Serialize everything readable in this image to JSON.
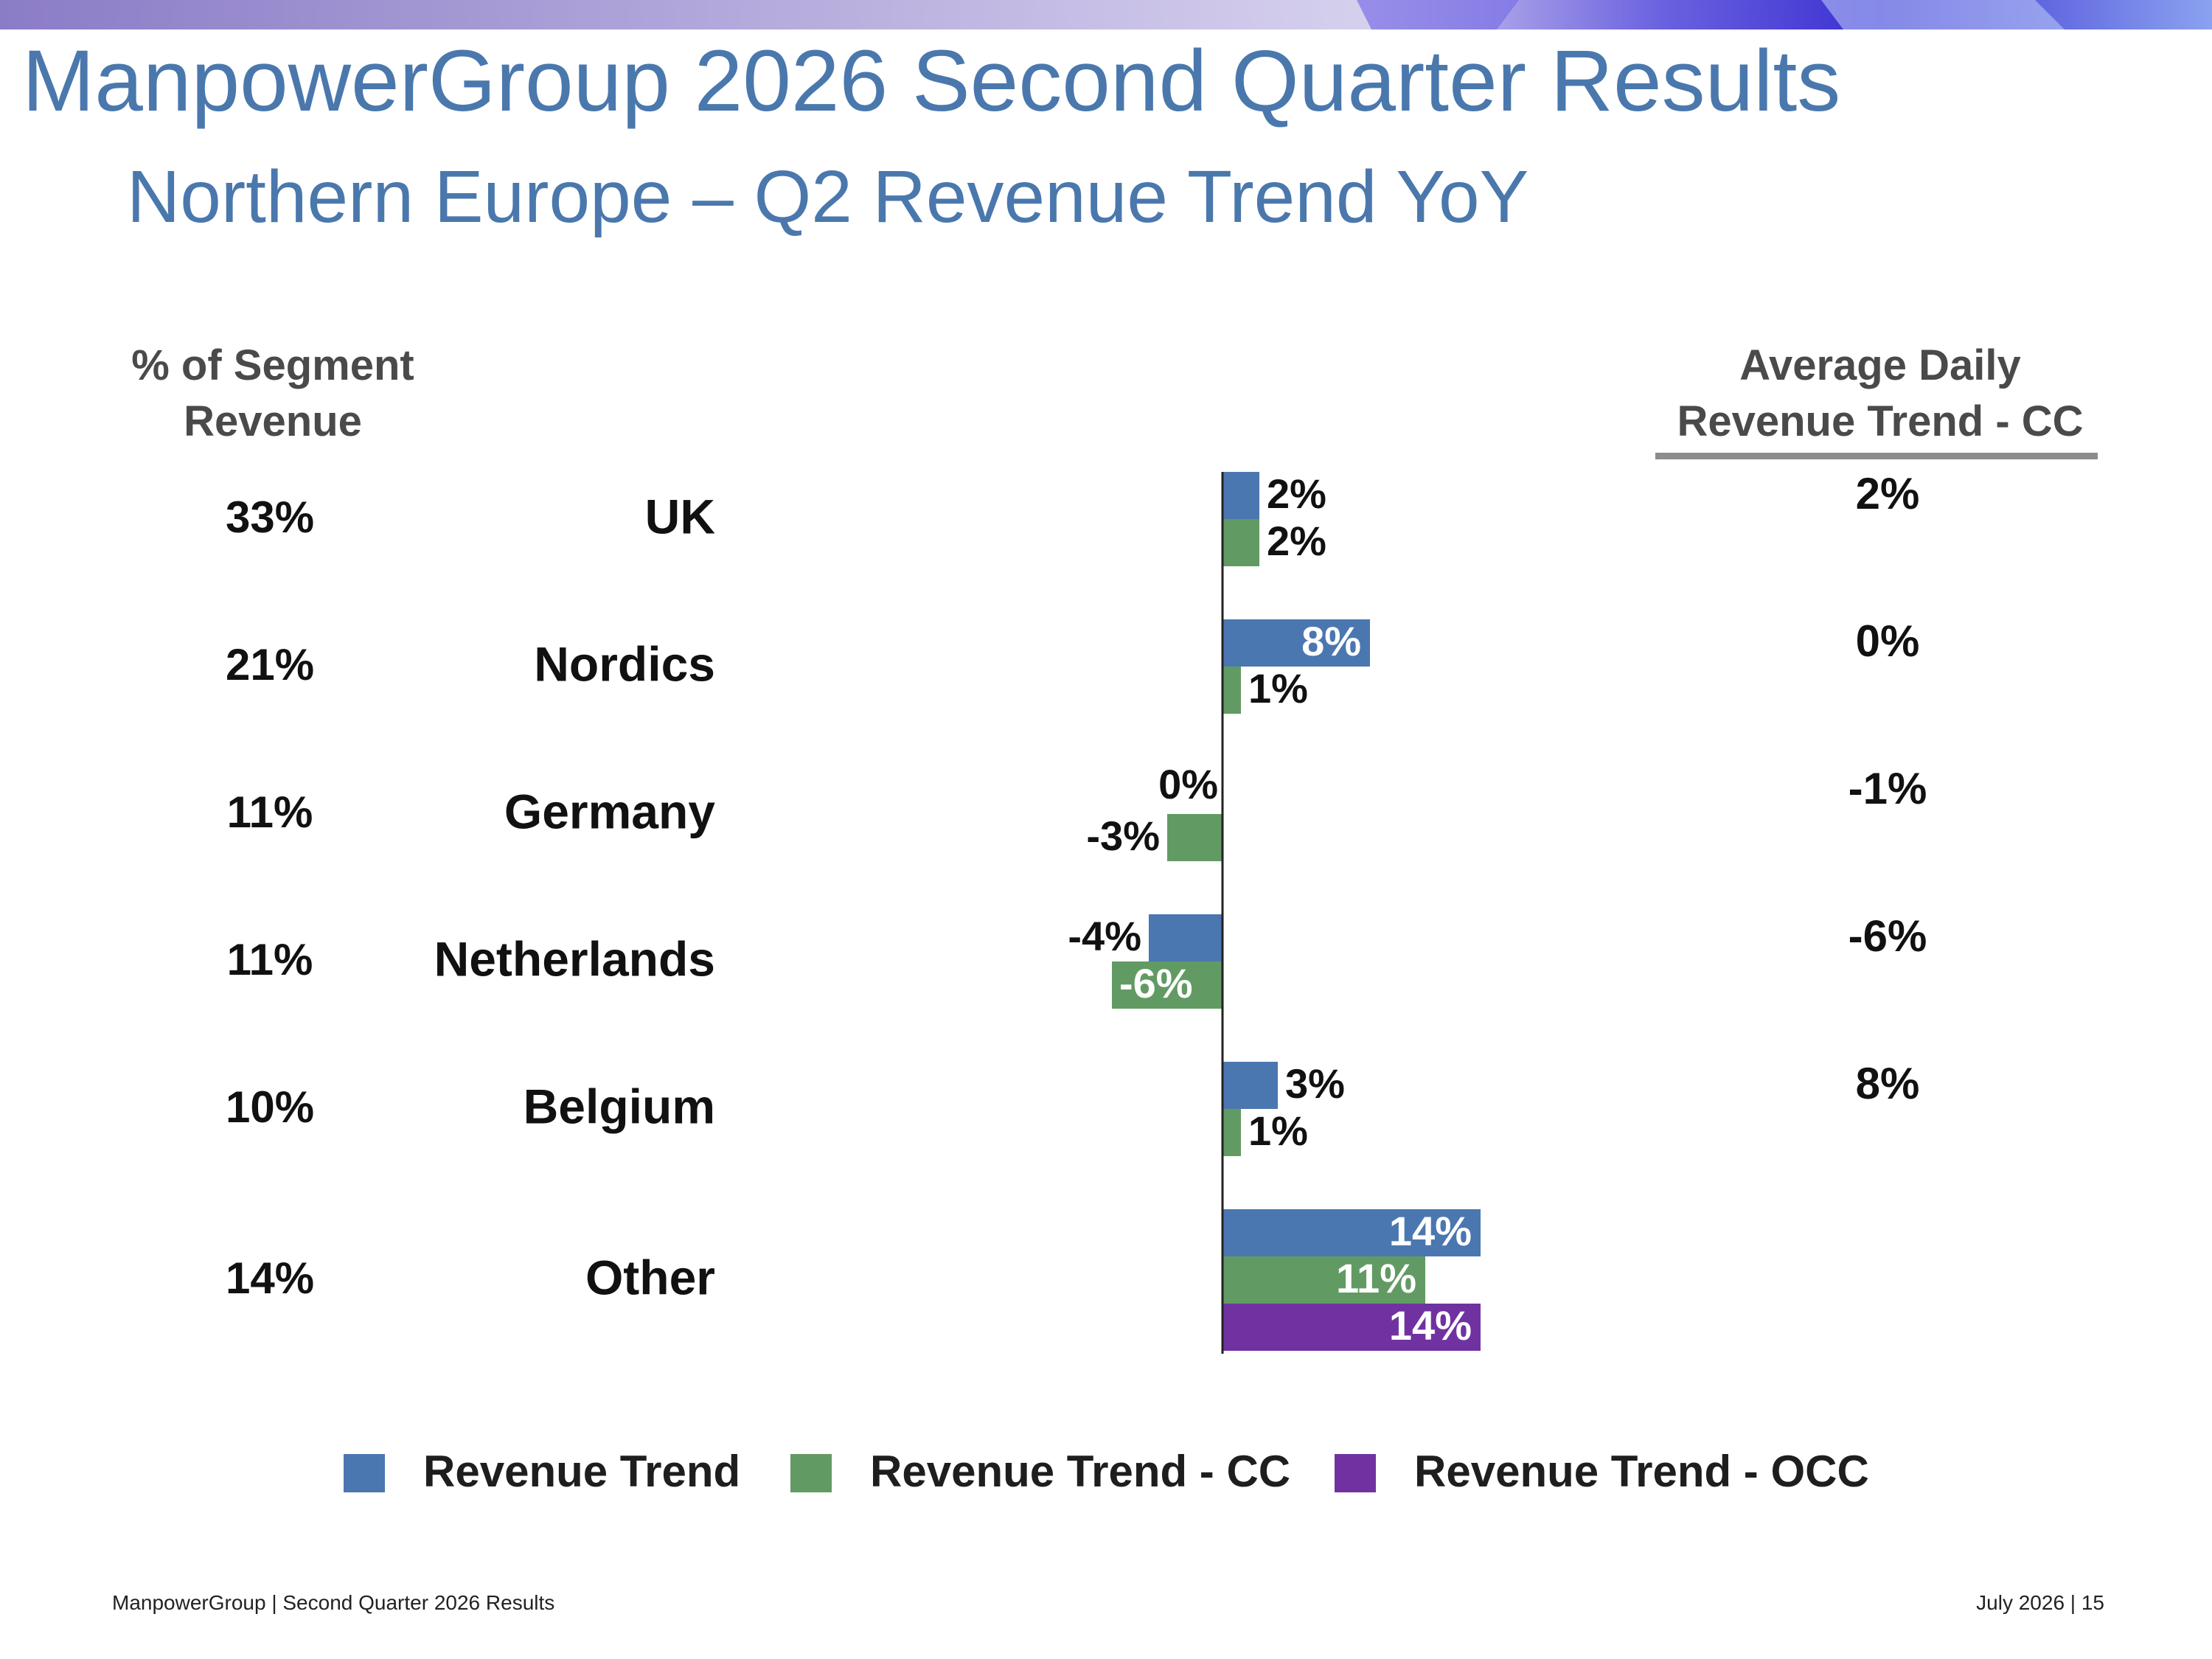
{
  "header": {
    "title": "ManpowerGroup 2026 Second Quarter Results",
    "subtitle": "Northern Europe – Q2 Revenue Trend YoY"
  },
  "columns": {
    "segment_header_line1": "% of Segment",
    "segment_header_line2": "Revenue",
    "adr_header_line1": "Average Daily",
    "adr_header_line2": "Revenue Trend - CC"
  },
  "colors": {
    "title": "#4a78ad",
    "revenue_trend": "#4b77b0",
    "revenue_trend_cc": "#629a63",
    "revenue_trend_occ": "#7032a0",
    "header_gray": "#4a4a4a",
    "band_start": "#8c79c6",
    "band_end": "#3a2fd0"
  },
  "chart_data": {
    "type": "bar",
    "orientation": "horizontal",
    "categories": [
      "UK",
      "Nordics",
      "Germany",
      "Netherlands",
      "Belgium",
      "Other"
    ],
    "segment_share": [
      "33%",
      "21%",
      "11%",
      "11%",
      "10%",
      "14%"
    ],
    "average_daily_revenue_trend_cc": [
      "2%",
      "0%",
      "-1%",
      "-6%",
      "8%",
      ""
    ],
    "series": [
      {
        "name": "Revenue Trend",
        "key": "revenue_trend",
        "values": [
          2,
          8,
          0,
          -4,
          3,
          14
        ]
      },
      {
        "name": "Revenue Trend - CC",
        "key": "revenue_trend_cc",
        "values": [
          2,
          1,
          -3,
          -6,
          1,
          11
        ]
      },
      {
        "name": "Revenue Trend - OCC",
        "key": "revenue_trend_occ",
        "values": [
          null,
          null,
          null,
          null,
          null,
          14
        ]
      }
    ],
    "value_suffix": "%",
    "legend_position": "bottom",
    "grid": false
  },
  "footer": {
    "left": "ManpowerGroup  |  Second Quarter 2026 Results",
    "right": "July 2026    |   15"
  }
}
